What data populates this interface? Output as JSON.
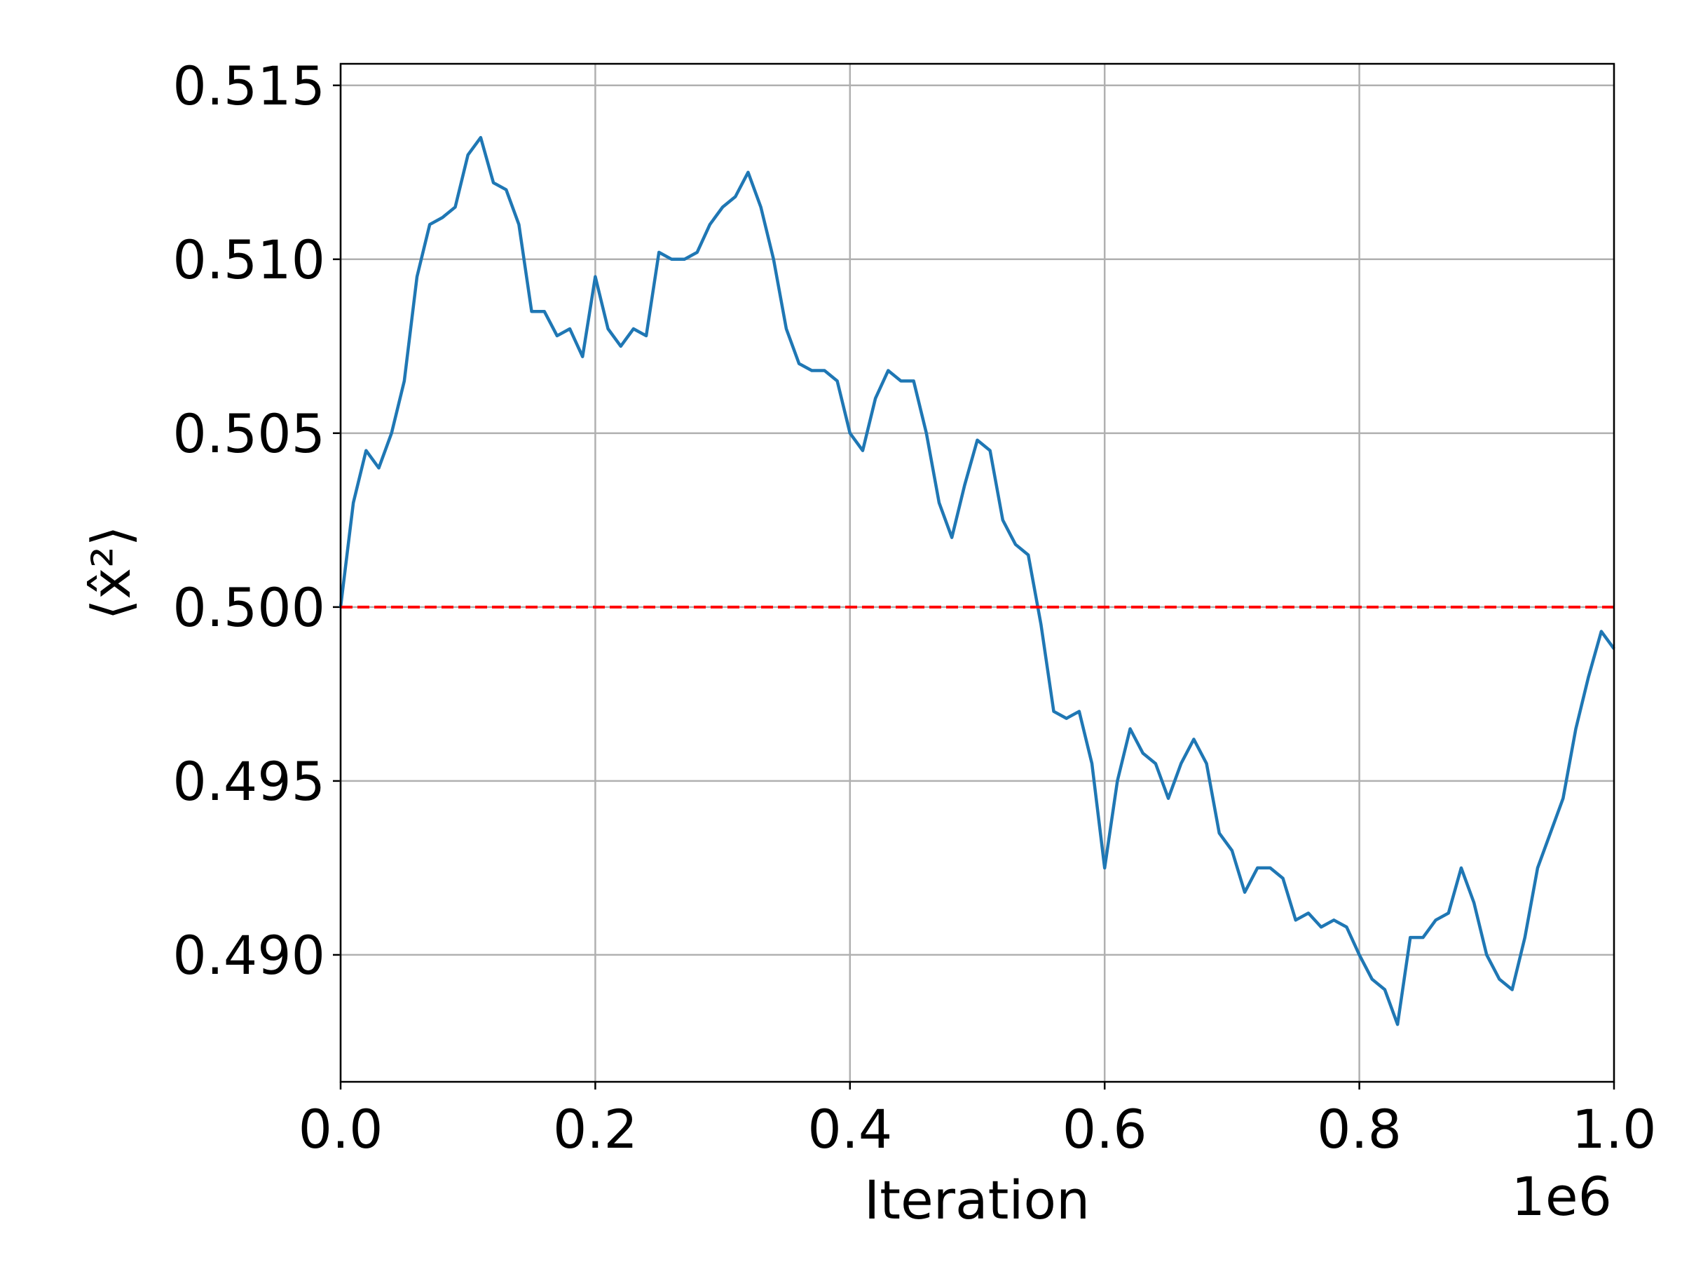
{
  "chart_data": {
    "type": "line",
    "xlabel": "Iteration",
    "ylabel": "⟨x̂²⟩",
    "x_offset_label": "1e6",
    "color": "#1f77b4",
    "x": [
      0,
      10000,
      20000,
      30000,
      40000,
      50000,
      60000,
      70000,
      80000,
      90000,
      100000,
      110000,
      120000,
      130000,
      140000,
      150000,
      160000,
      170000,
      180000,
      190000,
      200000,
      210000,
      220000,
      230000,
      240000,
      250000,
      260000,
      270000,
      280000,
      290000,
      300000,
      310000,
      320000,
      330000,
      340000,
      350000,
      360000,
      370000,
      380000,
      390000,
      400000,
      410000,
      420000,
      430000,
      440000,
      450000,
      460000,
      470000,
      480000,
      490000,
      500000,
      510000,
      520000,
      530000,
      540000,
      550000,
      560000,
      570000,
      580000,
      590000,
      600000,
      610000,
      620000,
      630000,
      640000,
      650000,
      660000,
      670000,
      680000,
      690000,
      700000,
      710000,
      720000,
      730000,
      740000,
      750000,
      760000,
      770000,
      780000,
      790000,
      800000,
      810000,
      820000,
      830000,
      840000,
      850000,
      860000,
      870000,
      880000,
      890000,
      900000,
      910000,
      920000,
      930000,
      940000,
      950000,
      960000,
      970000,
      980000,
      990000,
      1000000
    ],
    "values": [
      0.5,
      0.503,
      0.5045,
      0.504,
      0.505,
      0.5065,
      0.5095,
      0.511,
      0.5112,
      0.5115,
      0.513,
      0.5135,
      0.5122,
      0.512,
      0.511,
      0.5085,
      0.5085,
      0.5078,
      0.508,
      0.5072,
      0.5095,
      0.508,
      0.5075,
      0.508,
      0.5078,
      0.5102,
      0.51,
      0.51,
      0.5102,
      0.511,
      0.5115,
      0.5118,
      0.5125,
      0.5115,
      0.51,
      0.508,
      0.507,
      0.5068,
      0.5068,
      0.5065,
      0.505,
      0.5045,
      0.506,
      0.5068,
      0.5065,
      0.5065,
      0.505,
      0.503,
      0.502,
      0.5035,
      0.5048,
      0.5045,
      0.5025,
      0.5018,
      0.5015,
      0.4995,
      0.497,
      0.4968,
      0.497,
      0.4955,
      0.4925,
      0.495,
      0.4965,
      0.4958,
      0.4955,
      0.4945,
      0.4955,
      0.4962,
      0.4955,
      0.4935,
      0.493,
      0.4918,
      0.4925,
      0.4925,
      0.4922,
      0.491,
      0.4912,
      0.4908,
      0.491,
      0.4908,
      0.49,
      0.4893,
      0.489,
      0.488,
      0.4905,
      0.4905,
      0.491,
      0.4912,
      0.4925,
      0.4915,
      0.49,
      0.4893,
      0.489,
      0.4905,
      0.4925,
      0.4935,
      0.4945,
      0.4965,
      0.498,
      0.4993,
      0.4988
    ],
    "xlim": [
      0,
      1000000
    ],
    "xticks": [
      {
        "value": 0,
        "label": "0.0"
      },
      {
        "value": 200000,
        "label": "0.2"
      },
      {
        "value": 400000,
        "label": "0.4"
      },
      {
        "value": 600000,
        "label": "0.6"
      },
      {
        "value": 800000,
        "label": "0.8"
      },
      {
        "value": 1000000,
        "label": "1.0"
      }
    ],
    "ylim": [
      0.48635,
      0.51562
    ],
    "yticks": [
      {
        "value": 0.49,
        "label": "0.490"
      },
      0.495,
      {
        "value": 0.5,
        "label": "0.500"
      },
      0.505,
      {
        "value": 0.51,
        "label": "0.510"
      },
      0.515
    ],
    "grid": true,
    "hline": 0.5,
    "hline_color": "#ff0000"
  }
}
